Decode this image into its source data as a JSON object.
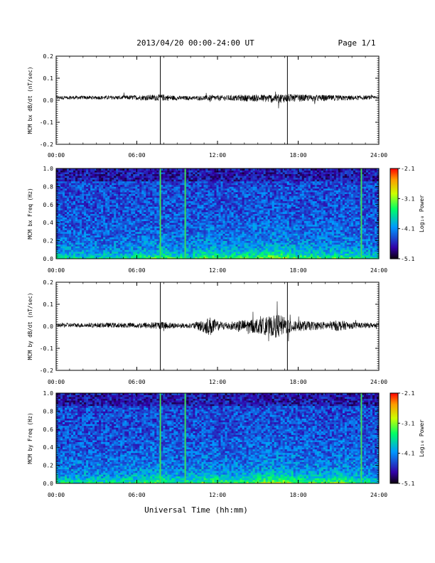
{
  "header": {
    "title": "2013/04/20  00:00-24:00 UT",
    "page": "Page 1/1"
  },
  "footer": {
    "xlabel": "Universal Time (hh:mm)"
  },
  "chart_data": [
    {
      "type": "line",
      "ylabel": "MCM bx dB/dt (nT/sec)",
      "ylim": [
        -0.2,
        0.2
      ],
      "yticks": [
        "-0.2",
        "-0.1",
        "0.0",
        "0.1",
        "0.2"
      ],
      "xticks": [
        "00:00",
        "06:00",
        "12:00",
        "18:00",
        "24:00"
      ],
      "xlim_hours": [
        0,
        24
      ],
      "vertical_lines_hours": [
        7.75,
        17.2
      ],
      "series_envelope": {
        "hours": [
          0,
          2,
          4,
          6,
          7,
          8,
          9,
          10,
          11,
          11.5,
          12,
          13,
          14,
          15,
          16,
          16.5,
          17,
          18,
          19,
          20,
          21,
          22,
          23,
          24
        ],
        "offset": [
          0.012,
          0.012,
          0.012,
          0.012,
          0.012,
          0.012,
          0.01,
          0.01,
          0.01,
          0.01,
          0.01,
          0.01,
          0.01,
          0.01,
          0.008,
          0.008,
          0.01,
          0.01,
          0.01,
          0.01,
          0.01,
          0.01,
          0.012,
          0.012
        ],
        "amplitude": [
          0.008,
          0.008,
          0.009,
          0.011,
          0.013,
          0.015,
          0.01,
          0.009,
          0.011,
          0.015,
          0.012,
          0.013,
          0.015,
          0.016,
          0.02,
          0.022,
          0.02,
          0.016,
          0.015,
          0.014,
          0.013,
          0.011,
          0.009,
          0.008
        ]
      }
    },
    {
      "type": "heatmap",
      "ylabel": "MCM bx Freq (Hz)",
      "ylim": [
        0.0,
        1.0
      ],
      "yticks": [
        "0.0",
        "0.2",
        "0.4",
        "0.6",
        "0.8",
        "1.0"
      ],
      "xticks": [
        "00:00",
        "06:00",
        "12:00",
        "18:00",
        "24:00"
      ],
      "colorbar": {
        "label": "Log₁₀ Power",
        "ticks": [
          "-2.1",
          "-3.1",
          "-4.1",
          "-5.1"
        ],
        "range": [
          -5.1,
          -2.1
        ]
      },
      "vertical_lines_hours": [
        7.75,
        9.6,
        22.7
      ],
      "activity_hours": [
        0,
        2,
        4,
        6,
        7,
        8,
        9,
        10,
        11,
        12,
        13,
        14,
        15,
        16,
        17,
        18,
        19,
        20,
        21,
        22,
        23,
        24
      ],
      "activity_level": [
        0.45,
        0.4,
        0.42,
        0.5,
        0.55,
        0.6,
        0.5,
        0.48,
        0.65,
        0.62,
        0.55,
        0.6,
        0.62,
        0.72,
        0.7,
        0.6,
        0.58,
        0.55,
        0.6,
        0.55,
        0.45,
        0.4
      ]
    },
    {
      "type": "line",
      "ylabel": "MCM by dB/dt (nT/sec)",
      "ylim": [
        -0.2,
        0.2
      ],
      "yticks": [
        "-0.2",
        "-0.1",
        "0.0",
        "0.1",
        "0.2"
      ],
      "xticks": [
        "00:00",
        "06:00",
        "12:00",
        "18:00",
        "24:00"
      ],
      "xlim_hours": [
        0,
        24
      ],
      "vertical_lines_hours": [
        7.75,
        17.2
      ],
      "series_envelope": {
        "hours": [
          0,
          2,
          4,
          6,
          7,
          8,
          9,
          10,
          11,
          11.5,
          12,
          13,
          14,
          15,
          16,
          16.5,
          17,
          18,
          19,
          20,
          21,
          22,
          23,
          24
        ],
        "offset": [
          0.005,
          0.005,
          0.005,
          0.004,
          0.004,
          0.004,
          0.003,
          0.003,
          0.0,
          0.0,
          0.002,
          0.003,
          0.002,
          0.002,
          0.0,
          0.0,
          0.002,
          0.002,
          0.002,
          0.003,
          0.003,
          0.004,
          0.004,
          0.005
        ],
        "amplitude": [
          0.01,
          0.01,
          0.011,
          0.013,
          0.015,
          0.018,
          0.012,
          0.011,
          0.03,
          0.045,
          0.022,
          0.02,
          0.028,
          0.035,
          0.045,
          0.055,
          0.04,
          0.025,
          0.02,
          0.018,
          0.025,
          0.015,
          0.012,
          0.01
        ]
      }
    },
    {
      "type": "heatmap",
      "ylabel": "MCM by Freq (Hz)",
      "ylim": [
        0.0,
        1.0
      ],
      "yticks": [
        "0.0",
        "0.2",
        "0.4",
        "0.6",
        "0.8",
        "1.0"
      ],
      "xticks": [
        "00:00",
        "06:00",
        "12:00",
        "18:00",
        "24:00"
      ],
      "colorbar": {
        "label": "Log₁₀ Power",
        "ticks": [
          "-2.1",
          "-3.1",
          "-4.1",
          "-5.1"
        ],
        "range": [
          -5.1,
          -2.1
        ]
      },
      "vertical_lines_hours": [
        7.75,
        9.6,
        22.7
      ],
      "activity_hours": [
        0,
        2,
        4,
        6,
        7,
        8,
        9,
        10,
        11,
        12,
        13,
        14,
        15,
        16,
        17,
        18,
        19,
        20,
        21,
        22,
        23,
        24
      ],
      "activity_level": [
        0.5,
        0.45,
        0.47,
        0.52,
        0.58,
        0.62,
        0.52,
        0.5,
        0.62,
        0.6,
        0.55,
        0.6,
        0.65,
        0.75,
        0.72,
        0.65,
        0.62,
        0.58,
        0.66,
        0.6,
        0.5,
        0.45
      ]
    }
  ]
}
